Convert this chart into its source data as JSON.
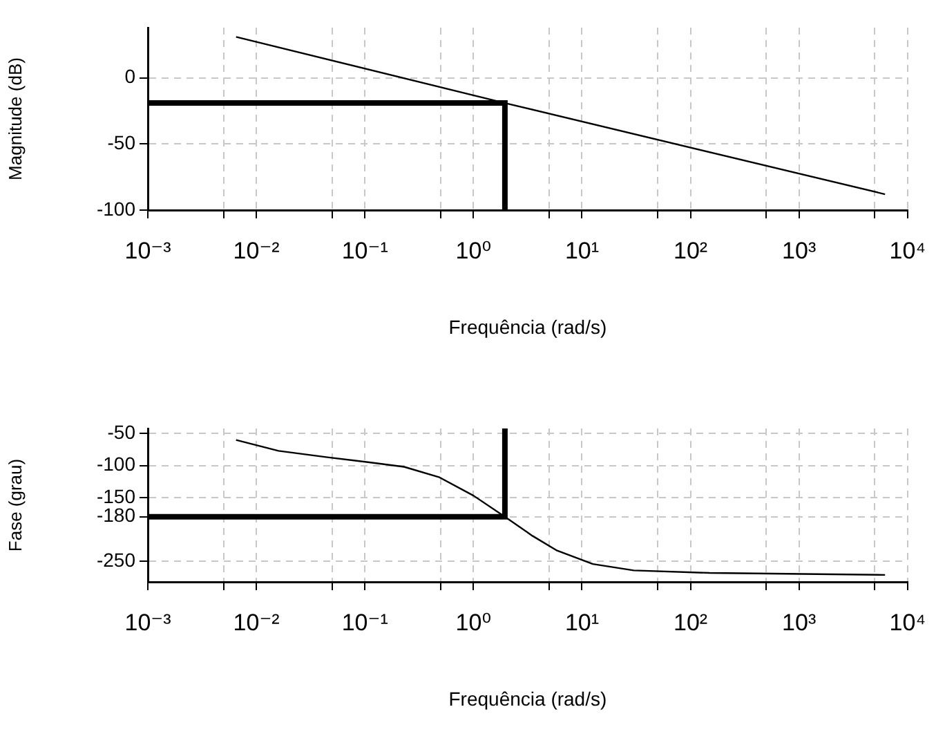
{
  "chart_data": [
    {
      "type": "line",
      "xlabel": "Frequência (rad/s)",
      "ylabel": "Magnitude (dB)",
      "log": "x",
      "grid": true,
      "marker": "none",
      "xlim": [
        0.001,
        10000
      ],
      "xticks": [
        {
          "value": 0.001,
          "label": "10⁻³"
        },
        {
          "value": 0.005,
          "label": null
        },
        {
          "value": 0.01,
          "label": "10⁻²"
        },
        {
          "value": 0.05,
          "label": null
        },
        {
          "value": 0.1,
          "label": "10⁻¹"
        },
        {
          "value": 0.5,
          "label": null
        },
        {
          "value": 1,
          "label": "10⁰"
        },
        {
          "value": 5,
          "label": null
        },
        {
          "value": 10,
          "label": "10¹"
        },
        {
          "value": 50,
          "label": null
        },
        {
          "value": 100,
          "label": "10²"
        },
        {
          "value": 500,
          "label": null
        },
        {
          "value": 1000,
          "label": "10³"
        },
        {
          "value": 5000,
          "label": null
        },
        {
          "value": 10000,
          "label": "10⁴"
        }
      ],
      "ylim": [
        -100,
        38
      ],
      "yticks": [
        -100,
        -50,
        0
      ],
      "series": [
        {
          "color": "#000000",
          "x": [
            0.0065,
            1.95,
            6200
          ],
          "values": [
            31,
            -19,
            -88
          ]
        },
        {
          "color": "#000000",
          "x": [
            0.001,
            1.95,
            1.95
          ],
          "values": [
            -19,
            -19,
            -100
          ]
        }
      ]
    },
    {
      "type": "line",
      "xlabel": "Frequência (rad/s)",
      "ylabel": "Fase (grau)",
      "log": "x",
      "grid": true,
      "marker": "none",
      "xlim": [
        0.001,
        10000
      ],
      "xticks": [
        {
          "value": 0.001,
          "label": "10⁻³"
        },
        {
          "value": 0.005,
          "label": null
        },
        {
          "value": 0.01,
          "label": "10⁻²"
        },
        {
          "value": 0.05,
          "label": null
        },
        {
          "value": 0.1,
          "label": "10⁻¹"
        },
        {
          "value": 0.5,
          "label": null
        },
        {
          "value": 1,
          "label": "10⁰"
        },
        {
          "value": 5,
          "label": null
        },
        {
          "value": 10,
          "label": "10¹"
        },
        {
          "value": 50,
          "label": null
        },
        {
          "value": 100,
          "label": "10²"
        },
        {
          "value": 500,
          "label": null
        },
        {
          "value": 1000,
          "label": "10³"
        },
        {
          "value": 5000,
          "label": null
        },
        {
          "value": 10000,
          "label": "10⁴"
        }
      ],
      "ylim": [
        -282,
        -42
      ],
      "yticks": [
        -250,
        -180,
        -150,
        -100,
        -50
      ],
      "series": [
        {
          "color": "#000000",
          "x": [
            0.0065,
            0.016,
            0.045,
            0.11,
            0.23,
            0.48,
            1,
            1.95,
            3.5,
            5.9,
            12.6,
            30,
            150,
            6200
          ],
          "values": [
            -60,
            -77,
            -87,
            -95,
            -102,
            -118,
            -147,
            -180,
            -210,
            -233,
            -254,
            -264,
            -268,
            -271
          ]
        },
        {
          "color": "#000000",
          "x": [
            0.001,
            1.95,
            1.95
          ],
          "values": [
            -180,
            -180,
            -42
          ]
        }
      ]
    }
  ]
}
